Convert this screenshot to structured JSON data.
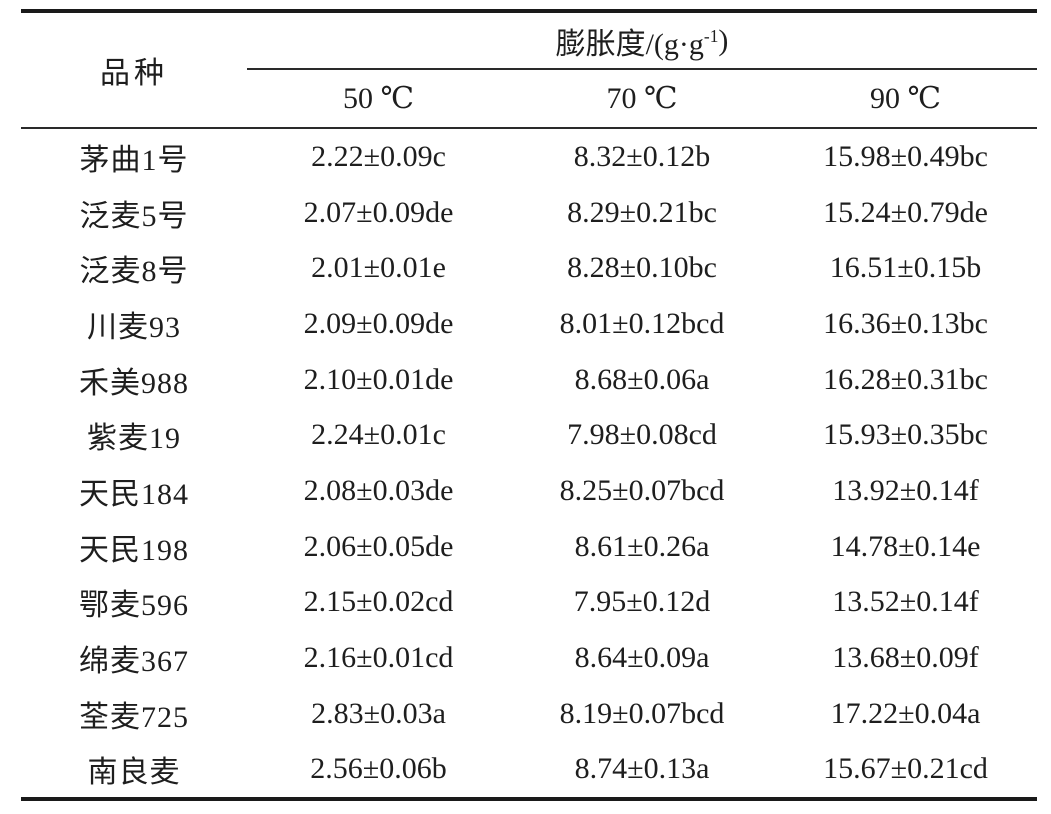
{
  "page": {
    "background": "#ffffff",
    "text_color": "#1e1e1e",
    "rule_color": "#1a1a1a"
  },
  "table": {
    "variety_header": "品种",
    "group_header": {
      "prefix": "膨胀度/(g·g",
      "superscript": "-1",
      "suffix": ")"
    },
    "temp_headers": [
      "50 ℃",
      "70 ℃",
      "90 ℃"
    ],
    "rows": [
      {
        "name": "茅曲1号",
        "values": [
          "2.22±0.09c",
          "8.32±0.12b",
          "15.98±0.49bc"
        ]
      },
      {
        "name": "泛麦5号",
        "values": [
          "2.07±0.09de",
          "8.29±0.21bc",
          "15.24±0.79de"
        ]
      },
      {
        "name": "泛麦8号",
        "values": [
          "2.01±0.01e",
          "8.28±0.10bc",
          "16.51±0.15b"
        ]
      },
      {
        "name": "川麦93",
        "values": [
          "2.09±0.09de",
          "8.01±0.12bcd",
          "16.36±0.13bc"
        ]
      },
      {
        "name": "禾美988",
        "values": [
          "2.10±0.01de",
          "8.68±0.06a",
          "16.28±0.31bc"
        ]
      },
      {
        "name": "紫麦19",
        "values": [
          "2.24±0.01c",
          "7.98±0.08cd",
          "15.93±0.35bc"
        ]
      },
      {
        "name": "天民184",
        "values": [
          "2.08±0.03de",
          "8.25±0.07bcd",
          "13.92±0.14f"
        ]
      },
      {
        "name": "天民198",
        "values": [
          "2.06±0.05de",
          "8.61±0.26a",
          "14.78±0.14e"
        ]
      },
      {
        "name": "鄂麦596",
        "values": [
          "2.15±0.02cd",
          "7.95±0.12d",
          "13.52±0.14f"
        ]
      },
      {
        "name": "绵麦367",
        "values": [
          "2.16±0.01cd",
          "8.64±0.09a",
          "13.68±0.09f"
        ]
      },
      {
        "name": "荃麦725",
        "values": [
          "2.83±0.03a",
          "8.19±0.07bcd",
          "17.22±0.04a"
        ]
      },
      {
        "name": "南良麦",
        "values": [
          "2.56±0.06b",
          "8.74±0.13a",
          "15.67±0.21cd"
        ]
      }
    ]
  }
}
